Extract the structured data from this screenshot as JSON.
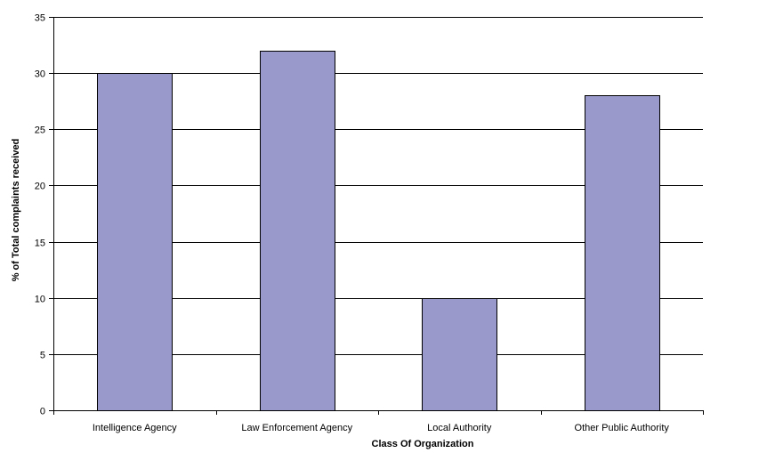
{
  "chart_data": {
    "type": "bar",
    "title": "",
    "xlabel": "Class Of Organization",
    "ylabel": "% of Total complaints received",
    "categories": [
      "Intelligence Agency",
      "Law Enforcement Agency",
      "Local Authority",
      "Other Public Authority"
    ],
    "values": [
      30,
      32,
      10,
      28
    ],
    "ylim": [
      0,
      35
    ],
    "yticks": [
      "0",
      "5",
      "10",
      "15",
      "20",
      "25",
      "30",
      "35"
    ],
    "grid": true,
    "legend": "none",
    "bar_color": "#9999cc"
  }
}
